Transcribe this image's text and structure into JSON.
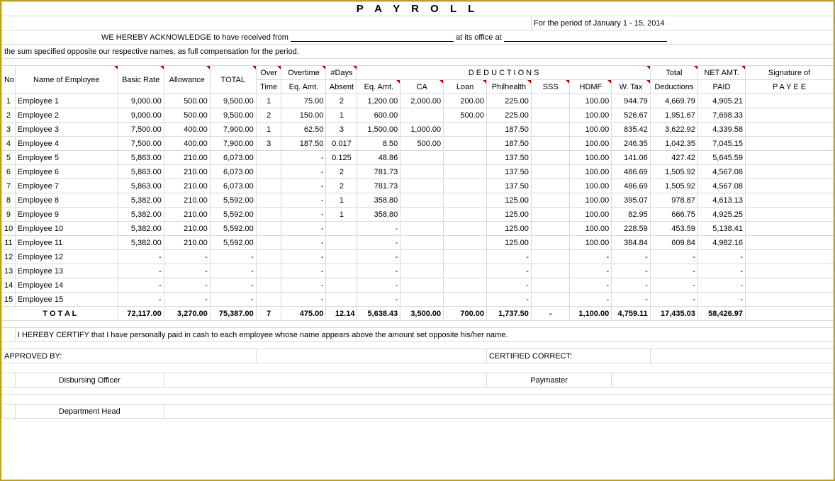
{
  "title": "P A Y R O L L",
  "period_text": "For the period of  January 1 - 15,  2014",
  "ack_prefix": "WE HEREBY ACKNOWLEDGE to have received from ",
  "ack_mid": " at its office at ",
  "line2": "the sum specified opposite our respective names, as full compensation for the period.",
  "h": {
    "no": "No.",
    "name": "Name of Employee",
    "basic": "Basic Rate",
    "allow": "Allowance",
    "total": "TOTAL",
    "over": "Over",
    "time": "Time",
    "overtime": "Overtime",
    "eqamt": "Eq. Amt.",
    "days": "#Days",
    "absent": "Absent",
    "deductions": "D  E  D  U  C  T  I  O  N  S",
    "ca": "CA",
    "loan": "Loan",
    "phil": "Philhealth",
    "sss": "SSS",
    "hdmf": "HDMF",
    "wtax": "W. Tax",
    "tot2": "Total",
    "tot2b": "Deductions",
    "net": "NET AMT.",
    "paid": "PAID",
    "sig": "Signature of",
    "payee": "P A Y E E"
  },
  "rows": [
    {
      "no": "1",
      "name": "Employee 1",
      "basic": "9,000.00",
      "allow": "500.00",
      "total": "9,500.00",
      "ot": "1",
      "oteq": "75.00",
      "days": "2",
      "eqamt": "1,200.00",
      "ca": "2,000.00",
      "loan": "200.00",
      "phil": "225.00",
      "sss": "",
      "hdmf": "100.00",
      "wtax": "944.79",
      "tded": "4,669.79",
      "net": "4,905.21"
    },
    {
      "no": "2",
      "name": "Employee 2",
      "basic": "9,000.00",
      "allow": "500.00",
      "total": "9,500.00",
      "ot": "2",
      "oteq": "150.00",
      "days": "1",
      "eqamt": "600.00",
      "ca": "",
      "loan": "500.00",
      "phil": "225.00",
      "sss": "",
      "hdmf": "100.00",
      "wtax": "526.67",
      "tded": "1,951.67",
      "net": "7,698.33"
    },
    {
      "no": "3",
      "name": "Employee 3",
      "basic": "7,500.00",
      "allow": "400.00",
      "total": "7,900.00",
      "ot": "1",
      "oteq": "62.50",
      "days": "3",
      "eqamt": "1,500.00",
      "ca": "1,000.00",
      "loan": "",
      "phil": "187.50",
      "sss": "",
      "hdmf": "100.00",
      "wtax": "835.42",
      "tded": "3,622.92",
      "net": "4,339.58"
    },
    {
      "no": "4",
      "name": "Employee 4",
      "basic": "7,500.00",
      "allow": "400.00",
      "total": "7,900.00",
      "ot": "3",
      "oteq": "187.50",
      "days": "0.017",
      "eqamt": "8.50",
      "ca": "500.00",
      "loan": "",
      "phil": "187.50",
      "sss": "",
      "hdmf": "100.00",
      "wtax": "246.35",
      "tded": "1,042.35",
      "net": "7,045.15"
    },
    {
      "no": "5",
      "name": "Employee 5",
      "basic": "5,863.00",
      "allow": "210.00",
      "total": "6,073.00",
      "ot": "",
      "oteq": "-",
      "days": "0.125",
      "eqamt": "48.86",
      "ca": "",
      "loan": "",
      "phil": "137.50",
      "sss": "",
      "hdmf": "100.00",
      "wtax": "141.06",
      "tded": "427.42",
      "net": "5,645.59"
    },
    {
      "no": "6",
      "name": "Employee 6",
      "basic": "5,863.00",
      "allow": "210.00",
      "total": "6,073.00",
      "ot": "",
      "oteq": "-",
      "days": "2",
      "eqamt": "781.73",
      "ca": "",
      "loan": "",
      "phil": "137.50",
      "sss": "",
      "hdmf": "100.00",
      "wtax": "486.69",
      "tded": "1,505.92",
      "net": "4,567.08"
    },
    {
      "no": "7",
      "name": "Employee 7",
      "basic": "5,863.00",
      "allow": "210.00",
      "total": "6,073.00",
      "ot": "",
      "oteq": "-",
      "days": "2",
      "eqamt": "781.73",
      "ca": "",
      "loan": "",
      "phil": "137.50",
      "sss": "",
      "hdmf": "100.00",
      "wtax": "486.69",
      "tded": "1,505.92",
      "net": "4,567.08"
    },
    {
      "no": "8",
      "name": "Employee 8",
      "basic": "5,382.00",
      "allow": "210.00",
      "total": "5,592.00",
      "ot": "",
      "oteq": "-",
      "days": "1",
      "eqamt": "358.80",
      "ca": "",
      "loan": "",
      "phil": "125.00",
      "sss": "",
      "hdmf": "100.00",
      "wtax": "395.07",
      "tded": "978.87",
      "net": "4,613.13"
    },
    {
      "no": "9",
      "name": "Employee 9",
      "basic": "5,382.00",
      "allow": "210.00",
      "total": "5,592.00",
      "ot": "",
      "oteq": "-",
      "days": "1",
      "eqamt": "358.80",
      "ca": "",
      "loan": "",
      "phil": "125.00",
      "sss": "",
      "hdmf": "100.00",
      "wtax": "82.95",
      "tded": "666.75",
      "net": "4,925.25"
    },
    {
      "no": "10",
      "name": "Employee 10",
      "basic": "5,382.00",
      "allow": "210.00",
      "total": "5,592.00",
      "ot": "",
      "oteq": "-",
      "days": "",
      "eqamt": "-",
      "ca": "",
      "loan": "",
      "phil": "125.00",
      "sss": "",
      "hdmf": "100.00",
      "wtax": "228.59",
      "tded": "453.59",
      "net": "5,138.41"
    },
    {
      "no": "11",
      "name": "Employee 11",
      "basic": "5,382.00",
      "allow": "210.00",
      "total": "5,592.00",
      "ot": "",
      "oteq": "-",
      "days": "",
      "eqamt": "-",
      "ca": "",
      "loan": "",
      "phil": "125.00",
      "sss": "",
      "hdmf": "100.00",
      "wtax": "384.84",
      "tded": "609.84",
      "net": "4,982.16"
    },
    {
      "no": "12",
      "name": "Employee 12",
      "basic": "-",
      "allow": "-",
      "total": "-",
      "ot": "",
      "oteq": "-",
      "days": "",
      "eqamt": "-",
      "ca": "",
      "loan": "",
      "phil": "-",
      "sss": "",
      "hdmf": "-",
      "wtax": "-",
      "tded": "-",
      "net": "-"
    },
    {
      "no": "13",
      "name": "Employee 13",
      "basic": "-",
      "allow": "-",
      "total": "-",
      "ot": "",
      "oteq": "-",
      "days": "",
      "eqamt": "-",
      "ca": "",
      "loan": "",
      "phil": "-",
      "sss": "",
      "hdmf": "-",
      "wtax": "-",
      "tded": "-",
      "net": "-"
    },
    {
      "no": "14",
      "name": "Employee 14",
      "basic": "-",
      "allow": "-",
      "total": "-",
      "ot": "",
      "oteq": "-",
      "days": "",
      "eqamt": "-",
      "ca": "",
      "loan": "",
      "phil": "-",
      "sss": "",
      "hdmf": "-",
      "wtax": "-",
      "tded": "-",
      "net": "-"
    },
    {
      "no": "15",
      "name": "Employee 15",
      "basic": "-",
      "allow": "-",
      "total": "-",
      "ot": "",
      "oteq": "-",
      "days": "",
      "eqamt": "-",
      "ca": "",
      "loan": "",
      "phil": "-",
      "sss": "",
      "hdmf": "-",
      "wtax": "-",
      "tded": "-",
      "net": "-"
    }
  ],
  "totals": {
    "label": "T O T A L",
    "basic": "72,117.00",
    "allow": "3,270.00",
    "total": "75,387.00",
    "ot": "7",
    "oteq": "475.00",
    "days": "12.14",
    "eqamt": "5,638.43",
    "ca": "3,500.00",
    "loan": "700.00",
    "phil": "1,737.50",
    "sss": "-",
    "hdmf": "1,100.00",
    "wtax": "4,759.11",
    "tded": "17,435.03",
    "net": "58,426.97"
  },
  "certify": "I HEREBY CERTIFY  that I have personally paid in cash to each employee whose name appears above the amount set opposite his/her name.",
  "approved_by": "APPROVED BY:",
  "certified_correct": "CERTIFIED CORRECT:",
  "disbursing": "Disbursing Officer",
  "paymaster": "Paymaster",
  "depthead": "Department Head"
}
